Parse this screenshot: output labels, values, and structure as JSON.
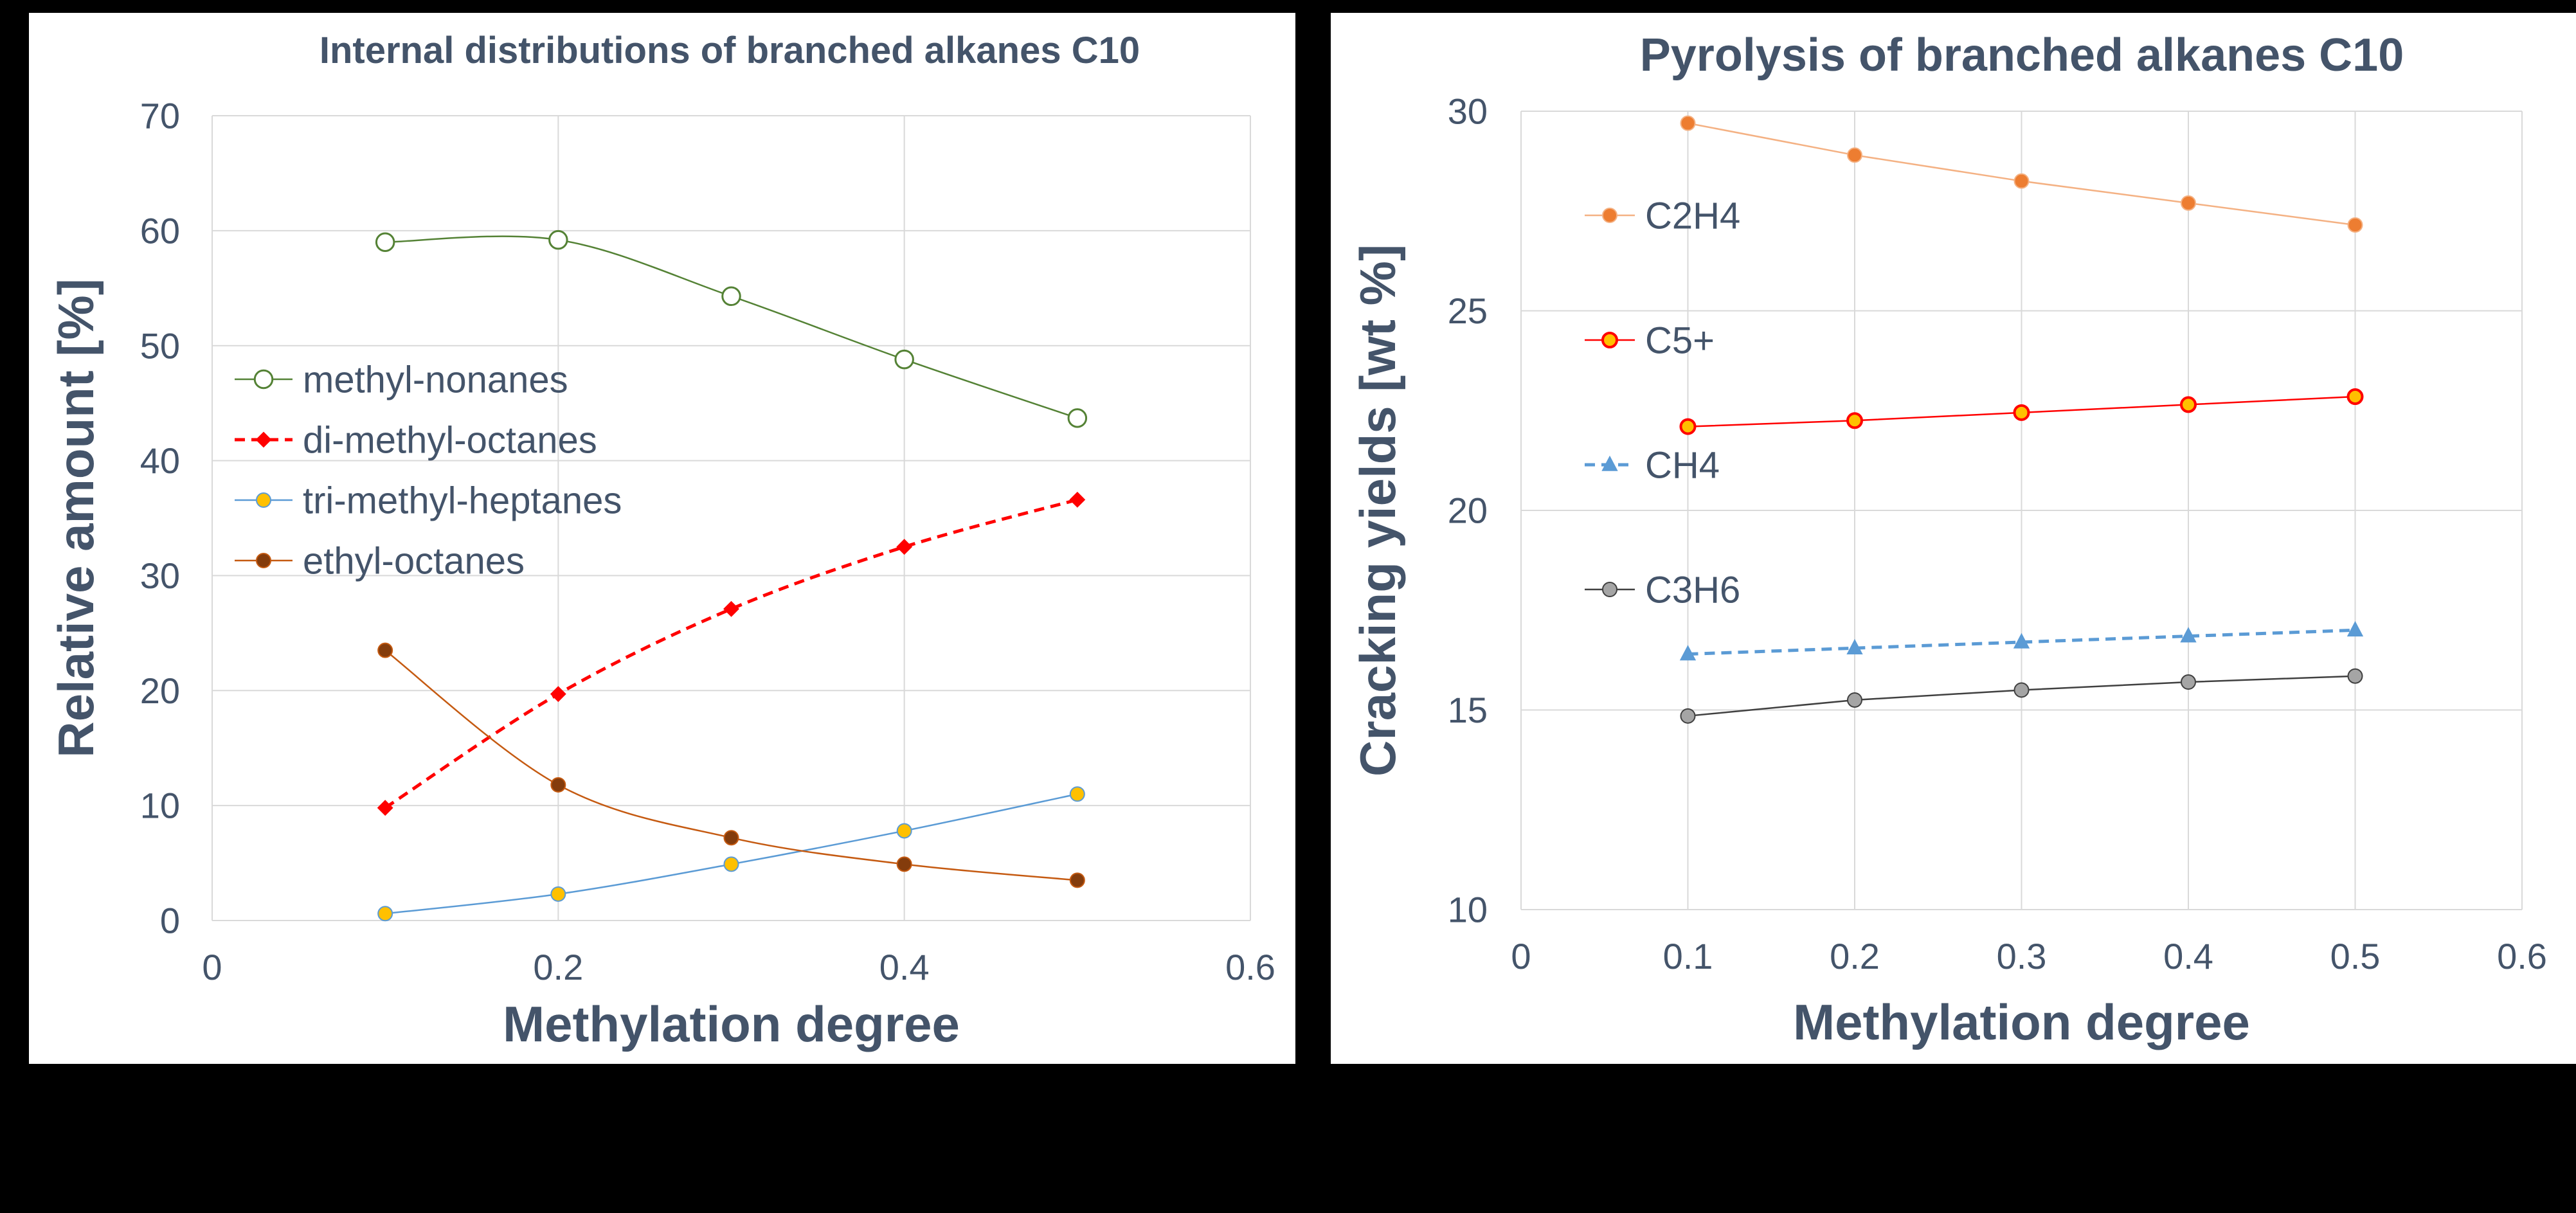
{
  "chart_data": [
    {
      "type": "line",
      "title": "Internal distributions of branched alkanes C10",
      "xlabel": "Methylation degree",
      "ylabel": "Relative amount [%]",
      "xlim": [
        0,
        0.6
      ],
      "ylim": [
        0,
        70
      ],
      "x_ticks": [
        "0",
        "0.2",
        "0.4",
        "0.6"
      ],
      "y_ticks": [
        "0",
        "10",
        "20",
        "30",
        "40",
        "50",
        "60",
        "70"
      ],
      "grid": true,
      "legend_position": "left-middle",
      "x": [
        0.1,
        0.2,
        0.3,
        0.4,
        0.5
      ],
      "series": [
        {
          "name": "methyl-nonanes",
          "values": [
            59.0,
            59.2,
            54.3,
            48.8,
            43.7
          ],
          "color": "#548235",
          "marker": "open-circle",
          "dash": "solid",
          "smooth": true
        },
        {
          "name": "di-methyl-octanes",
          "values": [
            9.8,
            19.7,
            27.1,
            32.5,
            36.6
          ],
          "color": "#FF0000",
          "marker": "diamond",
          "dash": "dashed",
          "smooth": true
        },
        {
          "name": "tri-methyl-heptanes",
          "values": [
            0.6,
            2.3,
            4.9,
            7.8,
            11.0
          ],
          "color": "#5B9BD5",
          "fill": "#FFC000",
          "marker": "filled-circle",
          "dash": "solid",
          "smooth": true
        },
        {
          "name": "ethyl-octanes",
          "values": [
            23.5,
            11.8,
            7.2,
            4.9,
            3.5
          ],
          "color": "#C55A11",
          "fill": "#843C0C",
          "marker": "filled-circle",
          "dash": "solid",
          "smooth": true
        }
      ]
    },
    {
      "type": "line",
      "title": "Pyrolysis of branched alkanes C10",
      "xlabel": "Methylation degree",
      "ylabel": "Cracking yields [wt %]",
      "xlim": [
        0,
        0.6
      ],
      "ylim": [
        10,
        30
      ],
      "x_ticks": [
        "0",
        "0.1",
        "0.2",
        "0.3",
        "0.4",
        "0.5",
        "0.6"
      ],
      "y_ticks": [
        "10",
        "15",
        "20",
        "25",
        "30"
      ],
      "grid": true,
      "legend_position": "left",
      "x": [
        0.1,
        0.2,
        0.3,
        0.4,
        0.5
      ],
      "series": [
        {
          "name": "C2H4",
          "values": [
            29.7,
            28.9,
            28.25,
            27.7,
            27.15
          ],
          "color": "#F4B183",
          "fill": "#ED7D31",
          "marker": "filled-circle",
          "dash": "solid"
        },
        {
          "name": "C5+",
          "values": [
            22.1,
            22.25,
            22.45,
            22.65,
            22.85
          ],
          "color": "#FF0000",
          "fill": "#FFC000",
          "marker": "ringed-circle",
          "dash": "solid"
        },
        {
          "name": "CH4",
          "values": [
            16.4,
            16.55,
            16.7,
            16.85,
            17.0
          ],
          "color": "#5B9BD5",
          "fill": "#5B9BD5",
          "marker": "triangle",
          "dash": "dashed"
        },
        {
          "name": "C3H6",
          "values": [
            14.85,
            15.25,
            15.5,
            15.7,
            15.85
          ],
          "color": "#404040",
          "fill": "#A5A5A5",
          "marker": "filled-circle",
          "dash": "solid"
        }
      ]
    }
  ]
}
